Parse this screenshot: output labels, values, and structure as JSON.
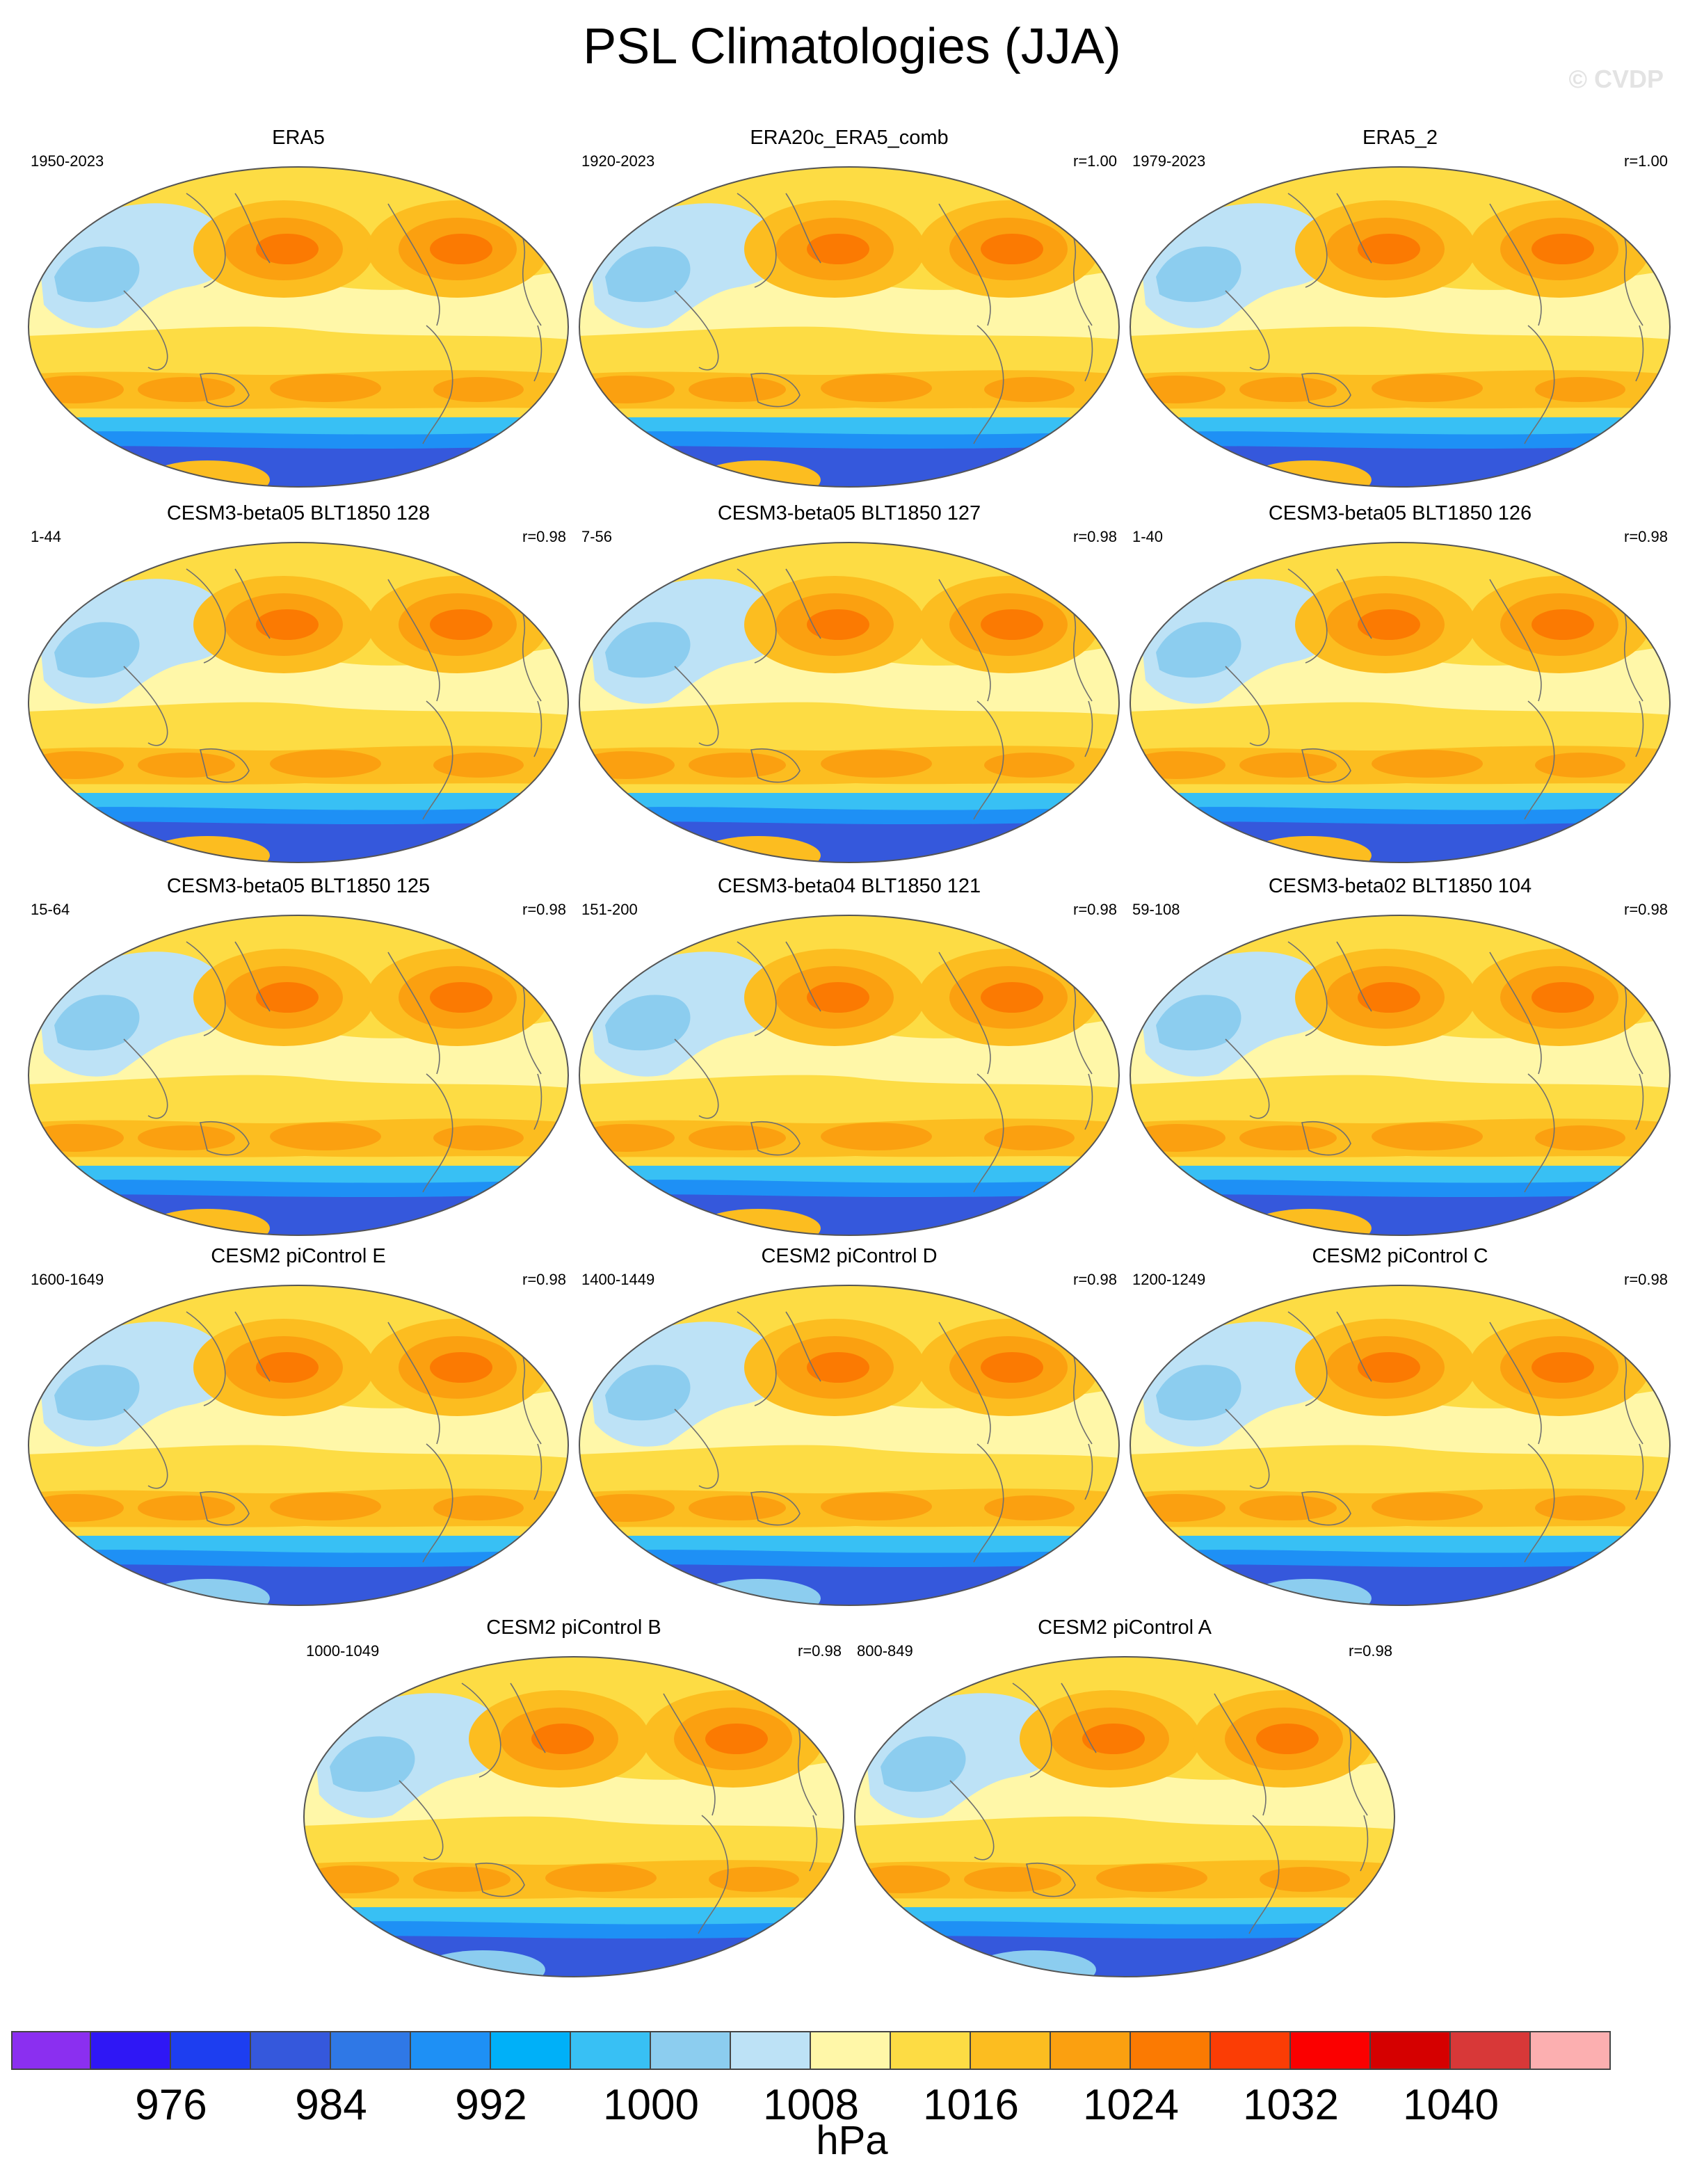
{
  "title": "PSL Climatologies (JJA)",
  "watermark": "© CVDP",
  "panels": [
    {
      "title": "ERA5",
      "range": "1950-2023",
      "r": ""
    },
    {
      "title": "ERA20c_ERA5_comb",
      "range": "1920-2023",
      "r": "r=1.00"
    },
    {
      "title": "ERA5_2",
      "range": "1979-2023",
      "r": "r=1.00"
    },
    {
      "title": "CESM3-beta05 BLT1850 128",
      "range": "1-44",
      "r": "r=0.98"
    },
    {
      "title": "CESM3-beta05 BLT1850 127",
      "range": "7-56",
      "r": "r=0.98"
    },
    {
      "title": "CESM3-beta05 BLT1850 126",
      "range": "1-40",
      "r": "r=0.98"
    },
    {
      "title": "CESM3-beta05 BLT1850 125",
      "range": "15-64",
      "r": "r=0.98"
    },
    {
      "title": "CESM3-beta04 BLT1850 121",
      "range": "151-200",
      "r": "r=0.98"
    },
    {
      "title": "CESM3-beta02 BLT1850 104",
      "range": "59-108",
      "r": "r=0.98"
    },
    {
      "title": "CESM2 piControl E",
      "range": "1600-1649",
      "r": "r=0.98"
    },
    {
      "title": "CESM2 piControl D",
      "range": "1400-1449",
      "r": "r=0.98"
    },
    {
      "title": "CESM2 piControl C",
      "range": "1200-1249",
      "r": "r=0.98"
    },
    {
      "title": "CESM2 piControl B",
      "range": "1000-1049",
      "r": "r=0.98"
    },
    {
      "title": "CESM2 piControl A",
      "range": "800-849",
      "r": "r=0.98"
    }
  ],
  "colorbar": {
    "colors": [
      "#8b2ff0",
      "#2f17f5",
      "#1d3ef0",
      "#3558dc",
      "#2f78e6",
      "#1e90f5",
      "#00b0f8",
      "#38c0f4",
      "#8ccdef",
      "#bde2f6",
      "#fff7a8",
      "#fddc44",
      "#fcbd20",
      "#fba010",
      "#fb7a02",
      "#fb3d05",
      "#fb0000",
      "#d50000",
      "#d83838",
      "#fcafb0"
    ],
    "labels": [
      "976",
      "984",
      "992",
      "1000",
      "1008",
      "1016",
      "1024",
      "1032",
      "1040"
    ],
    "units": "hPa"
  },
  "map_colors": {
    "ocean_base": "#fddc44",
    "subtropical_high": "#fcbd20",
    "high_core": "#fba010",
    "high_peak": "#fb7a02",
    "eq_trough": "#fff7a8",
    "asian_low": "#bde2f6",
    "asian_low_core": "#8ccdef",
    "southern_band_outer": "#38c0f4",
    "southern_band_mid": "#1e90f5",
    "southern_band_inner": "#3558dc",
    "antarctic_high": "#fcbd20",
    "antarctic_low": "#8ccdef",
    "coastline": "#6f6f6f"
  }
}
